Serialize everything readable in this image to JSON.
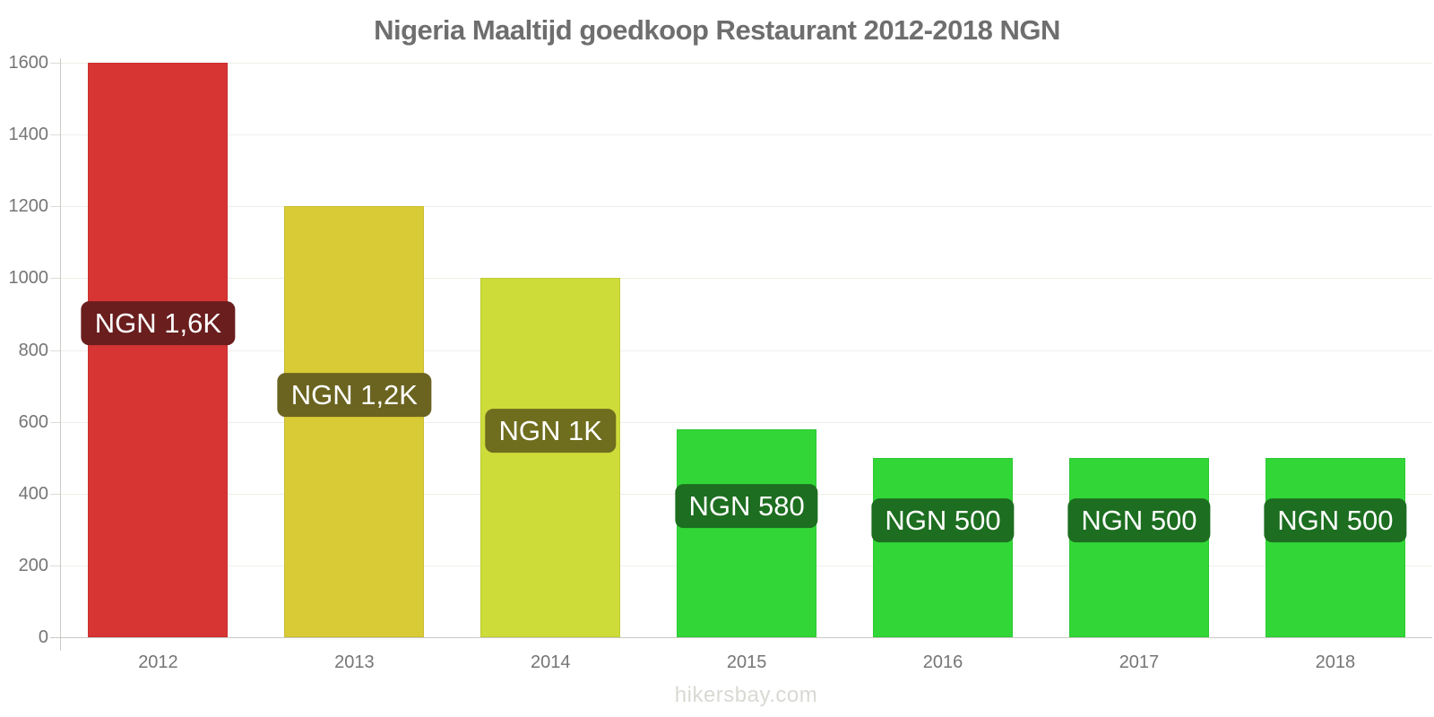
{
  "page": {
    "title": "Nigeria Maaltijd goedkoop Restaurant 2012-2018 NGN",
    "watermark": "hikersbay.com"
  },
  "chart_data": {
    "type": "bar",
    "title": "Nigeria Maaltijd goedkoop Restaurant 2012-2018 NGN",
    "currency": "NGN",
    "categories": [
      "2012",
      "2013",
      "2014",
      "2015",
      "2016",
      "2017",
      "2018"
    ],
    "values": [
      1600,
      1200,
      1000,
      580,
      500,
      500,
      500
    ],
    "bar_labels": [
      "NGN 1,6K",
      "NGN 1,2K",
      "NGN 1K",
      "NGN 580",
      "NGN 500",
      "NGN 500",
      "NGN 500"
    ],
    "bar_colors": [
      "#d73534",
      "#d9cb35",
      "#cddc39",
      "#32d737",
      "#32d737",
      "#32d737",
      "#32d737"
    ],
    "bar_label_bg_colors": [
      "#6a1e1e",
      "#6b6420",
      "#6f6d1e",
      "#1d6e20",
      "#1d6e20",
      "#1d6e20",
      "#1d6e20"
    ],
    "xlabel": "",
    "ylabel": "",
    "ylim": [
      0,
      1600
    ],
    "yticks": [
      0,
      200,
      400,
      600,
      800,
      1000,
      1200,
      1400,
      1600
    ],
    "grid": true,
    "legend": false
  },
  "style": {
    "axis_color": "#c9c9c4",
    "grid_color": "#efefe9",
    "tick_color": "#ddddd7",
    "text_color": "#757575",
    "title_color": "#6e6e6e",
    "watermark_color": "#d9d9d3",
    "bar_label_text_color": "#ffffff"
  }
}
